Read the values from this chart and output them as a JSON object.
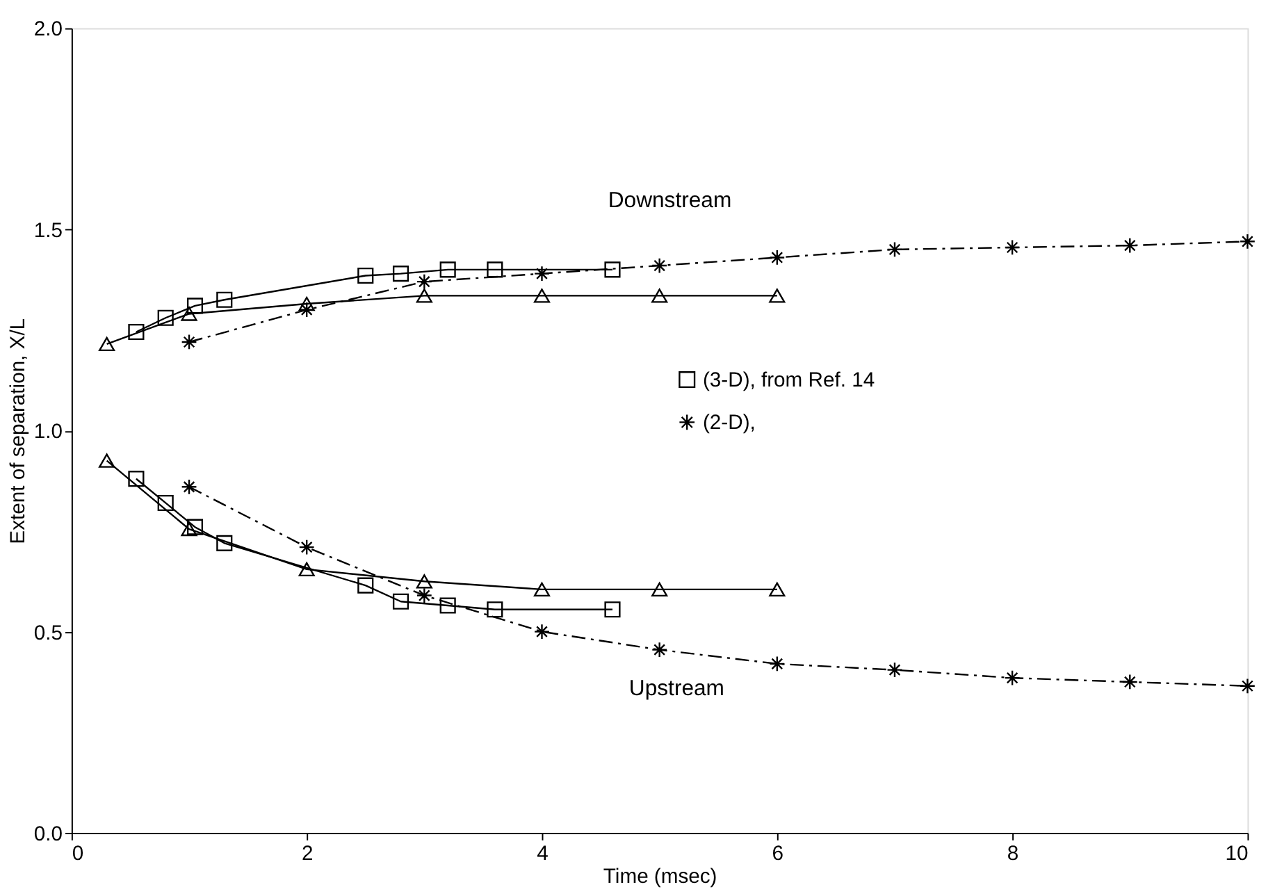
{
  "chart_data": {
    "type": "line",
    "xlabel": "Time (msec)",
    "ylabel": "Extent of separation, X/L",
    "xlim": [
      0,
      10
    ],
    "xticks": [
      0,
      2,
      4,
      6,
      8,
      10
    ],
    "ylim": [
      0,
      2
    ],
    "yticks": [
      {
        "value": 0,
        "label": "0.0"
      },
      {
        "value": 0.5,
        "label": "0.5"
      },
      {
        "value": 1,
        "label": "1.0"
      },
      {
        "value": 1.5,
        "label": "1.5"
      },
      {
        "value": 2,
        "label": "2.0"
      }
    ],
    "grid": false,
    "legend": "right",
    "series": [
      {
        "name": "(3-D), from Ref. 14",
        "color": "#000000",
        "marker": "square",
        "line_style": "solid",
        "x": [
          0.55,
          0.8,
          1.05,
          1.3,
          2.5,
          2.8,
          3.2,
          3.6,
          4.6
        ],
        "values": [
          1.245,
          1.28,
          1.31,
          1.325,
          1.385,
          1.39,
          1.4,
          1.4,
          1.4
        ]
      },
      {
        "color": "#000000",
        "marker": "square",
        "line_style": "solid",
        "x": [
          0.55,
          0.8,
          1.05,
          1.3,
          2.5,
          2.8,
          3.2,
          3.6,
          4.6
        ],
        "values": [
          0.88,
          0.82,
          0.76,
          0.72,
          0.615,
          0.575,
          0.565,
          0.555,
          0.555
        ]
      },
      {
        "name": "(2-D),",
        "color": "#000000",
        "marker": "cross",
        "line_style": "dashed",
        "x": [
          1,
          2,
          3,
          4,
          5,
          6,
          7,
          8,
          9,
          10
        ],
        "values": [
          1.22,
          1.3,
          1.37,
          1.39,
          1.41,
          1.43,
          1.45,
          1.455,
          1.46,
          1.47
        ]
      },
      {
        "color": "#000000",
        "marker": "cross",
        "line_style": "dashed",
        "x": [
          1,
          2,
          3,
          4,
          5,
          6,
          7,
          8,
          9,
          10
        ],
        "values": [
          0.86,
          0.71,
          0.59,
          0.5,
          0.455,
          0.42,
          0.405,
          0.385,
          0.375,
          0.365
        ]
      },
      {
        "color": "#000000",
        "marker": "triangle",
        "line_style": "solid",
        "x": [
          0.3,
          1,
          2,
          3,
          4,
          5,
          6
        ],
        "values": [
          1.215,
          1.29,
          1.315,
          1.335,
          1.335,
          1.335,
          1.335
        ]
      },
      {
        "color": "#000000",
        "marker": "triangle",
        "line_style": "solid",
        "x": [
          0.3,
          1,
          2,
          3,
          4,
          5,
          6
        ],
        "values": [
          0.925,
          0.755,
          0.655,
          0.625,
          0.605,
          0.605,
          0.605
        ]
      }
    ],
    "annotations": [
      "Downstream",
      "Upstream"
    ]
  }
}
